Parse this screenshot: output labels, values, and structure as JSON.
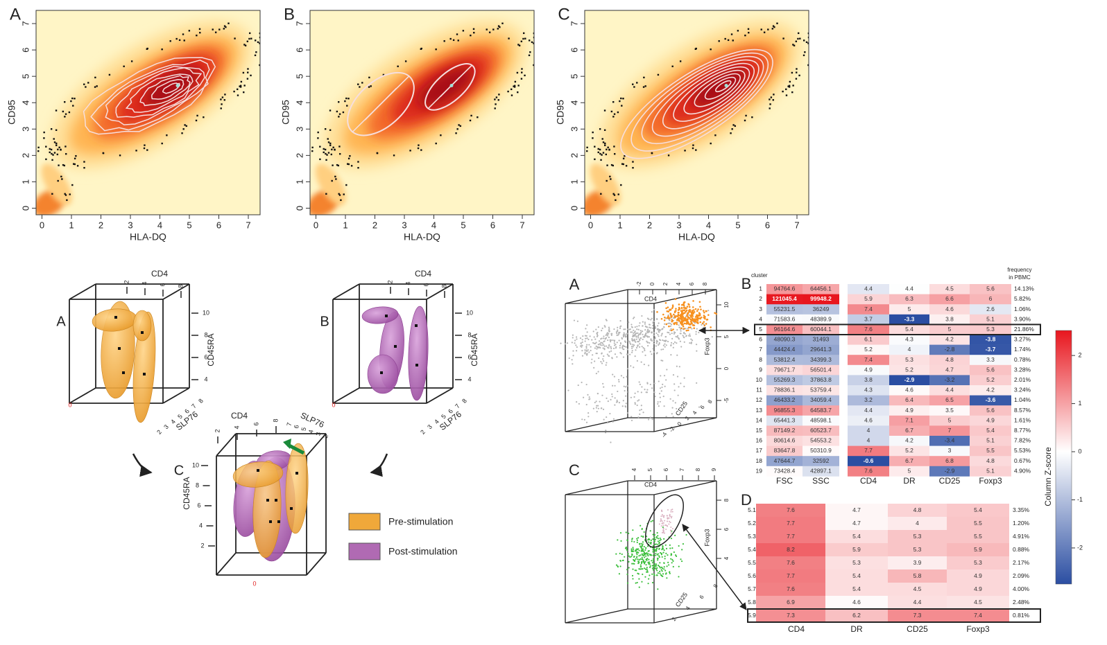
{
  "density_panels": {
    "labels": [
      "A",
      "B",
      "C"
    ],
    "x_label": "HLA-DQ",
    "y_label": "CD95",
    "xticks": [
      0,
      1,
      2,
      3,
      4,
      5,
      6,
      7
    ],
    "yticks": [
      0,
      1,
      2,
      3,
      4,
      5,
      6,
      7
    ],
    "xlim": [
      -0.2,
      7.4
    ],
    "ylim": [
      -0.25,
      7.5
    ]
  },
  "stimulation_3d": {
    "labels": [
      "A",
      "B",
      "C"
    ],
    "cd4": "CD4",
    "cd45ra": "CD45RA",
    "slp76": "SLP76",
    "origin": 0,
    "cd4_ticks": [
      2,
      4,
      6,
      8
    ],
    "cd45ra_ticks": [
      4,
      6,
      8,
      10
    ],
    "cd45ra_ticks_c": [
      2,
      4,
      6,
      8,
      10
    ],
    "slp76_ticks": [
      2,
      3,
      4,
      5,
      6,
      7,
      8
    ],
    "slp76_ticks_c": [
      2,
      3,
      4,
      5,
      6,
      7
    ],
    "legend": [
      {
        "name": "Pre-stimulation",
        "color": "#f0a83a"
      },
      {
        "name": "Post-stimulation",
        "color": "#b06ab3"
      }
    ]
  },
  "scatter_3d": {
    "labels": [
      "A",
      "C"
    ],
    "x_label": "CD4",
    "y_label": "Foxp3",
    "z_label": "CD25",
    "a_xticks": [
      -2,
      0,
      2,
      4,
      6,
      8
    ],
    "a_yticks": [
      10,
      5,
      0,
      -5
    ],
    "a_zticks": [
      -4,
      -2,
      0,
      2,
      4,
      6,
      8
    ],
    "c_xticks": [
      4,
      5,
      6,
      7,
      8,
      9
    ],
    "c_yticks": [
      8,
      6,
      4
    ],
    "c_zticks": [
      2,
      4,
      6,
      8
    ]
  },
  "cluster_table": {
    "label": "B",
    "row_header": "cluster",
    "freq_header": [
      "frequency",
      "in PBMC"
    ],
    "columns": [
      "FSC",
      "SSC",
      "CD4",
      "DR",
      "CD25",
      "Foxp3"
    ],
    "rows": [
      {
        "cluster": 1,
        "values": [
          94764.6,
          64456.1,
          4.4,
          4.4,
          4.5,
          5.6
        ],
        "frequency": "14.13%"
      },
      {
        "cluster": 2,
        "values": [
          121045.4,
          99948.2,
          5.9,
          6.3,
          6.6,
          6
        ],
        "frequency": "5.82%"
      },
      {
        "cluster": 3,
        "values": [
          55231.5,
          36249,
          7.4,
          5,
          4.6,
          2.6
        ],
        "frequency": "1.06%"
      },
      {
        "cluster": 4,
        "values": [
          71583.6,
          48389.9,
          3.7,
          -3.3,
          3.8,
          5.1
        ],
        "frequency": "3.90%"
      },
      {
        "cluster": 5,
        "values": [
          96164.6,
          60044.1,
          7.6,
          5.4,
          5,
          5.3
        ],
        "frequency": "21.86%"
      },
      {
        "cluster": 6,
        "values": [
          48090.3,
          31493,
          6.1,
          4.3,
          4.2,
          -3.8
        ],
        "frequency": "3.27%"
      },
      {
        "cluster": 7,
        "values": [
          44424.4,
          29641.3,
          5.2,
          4,
          -2.8,
          -3.7
        ],
        "frequency": "1.74%"
      },
      {
        "cluster": 8,
        "values": [
          53812.4,
          34399.3,
          7.4,
          5.3,
          4.8,
          3.3
        ],
        "frequency": "0.78%"
      },
      {
        "cluster": 9,
        "values": [
          79671.7,
          56501.4,
          4.9,
          5.2,
          4.7,
          5.6
        ],
        "frequency": "3.28%"
      },
      {
        "cluster": 10,
        "values": [
          55269.3,
          37863.8,
          3.8,
          -2.9,
          -3.2,
          5.2
        ],
        "frequency": "2.01%"
      },
      {
        "cluster": 11,
        "values": [
          78836.1,
          53759.4,
          4.3,
          4.6,
          4.4,
          4.2
        ],
        "frequency": "3.24%"
      },
      {
        "cluster": 12,
        "values": [
          46433.2,
          34059.4,
          3.2,
          6.4,
          6.5,
          -3.6
        ],
        "frequency": "1.04%"
      },
      {
        "cluster": 13,
        "values": [
          96855.3,
          64583.7,
          4.4,
          4.9,
          3.5,
          5.6
        ],
        "frequency": "8.57%"
      },
      {
        "cluster": 14,
        "values": [
          65441.3,
          48598.1,
          4.6,
          7.1,
          5,
          4.9
        ],
        "frequency": "1.61%"
      },
      {
        "cluster": 15,
        "values": [
          87149.2,
          60523.7,
          4,
          6.7,
          7,
          5.4
        ],
        "frequency": "8.77%"
      },
      {
        "cluster": 16,
        "values": [
          80614.6,
          54553.2,
          4,
          4.2,
          -3.4,
          5.1
        ],
        "frequency": "7.82%"
      },
      {
        "cluster": 17,
        "values": [
          83647.8,
          50310.9,
          7.7,
          5.2,
          3,
          5.5
        ],
        "frequency": "5.53%"
      },
      {
        "cluster": 18,
        "values": [
          47644.7,
          32592,
          -0.6,
          6.7,
          6.8,
          4.8
        ],
        "frequency": "0.67%"
      },
      {
        "cluster": 19,
        "values": [
          73428.4,
          42897.1,
          7.6,
          5,
          -2.9,
          5.1
        ],
        "frequency": "4.90%"
      }
    ]
  },
  "subcluster_table": {
    "label": "D",
    "columns": [
      "CD4",
      "DR",
      "CD25",
      "Foxp3"
    ],
    "rows": [
      {
        "cluster": "5.1",
        "values": [
          7.6,
          4.7,
          4.8,
          5.4
        ],
        "frequency": "3.35%"
      },
      {
        "cluster": "5.2",
        "values": [
          7.7,
          4.7,
          4,
          5.5
        ],
        "frequency": "1.20%"
      },
      {
        "cluster": "5.3",
        "values": [
          7.7,
          5.4,
          5.3,
          5.5
        ],
        "frequency": "4.91%"
      },
      {
        "cluster": "5.4",
        "values": [
          8.2,
          5.9,
          5.3,
          5.9
        ],
        "frequency": "0.88%"
      },
      {
        "cluster": "5.5",
        "values": [
          7.6,
          5.3,
          3.9,
          5.3
        ],
        "frequency": "2.17%"
      },
      {
        "cluster": "5.6",
        "values": [
          7.7,
          5.4,
          5.8,
          4.9
        ],
        "frequency": "2.09%"
      },
      {
        "cluster": "5.7",
        "values": [
          7.6,
          5.4,
          4.5,
          4.9
        ],
        "frequency": "4.00%"
      },
      {
        "cluster": "5.8",
        "values": [
          6.9,
          4.6,
          4.4,
          4.5
        ],
        "frequency": "2.48%"
      },
      {
        "cluster": "5.9",
        "values": [
          7.3,
          6.2,
          7.3,
          7.4
        ],
        "frequency": "0.81%"
      }
    ]
  },
  "colorbar": {
    "label": "Column Z-score",
    "ticks": [
      2,
      1,
      0,
      -1,
      -2
    ],
    "lim": [
      -2.75,
      2.52
    ],
    "colors": [
      "#2b4ea2",
      "#ffffff",
      "#e8161e"
    ]
  }
}
